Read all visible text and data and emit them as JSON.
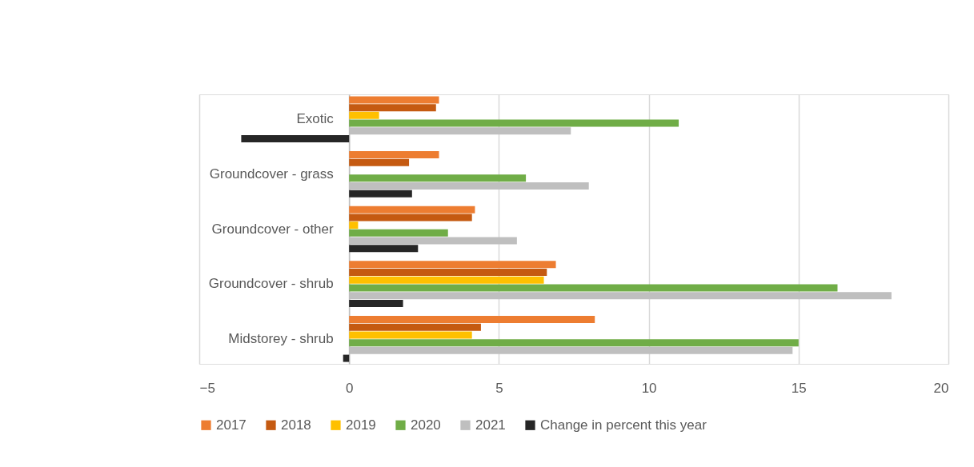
{
  "chart_data": {
    "type": "bar",
    "orientation": "horizontal",
    "categories": [
      "Exotic",
      "Groundcover - grass",
      "Groundcover - other",
      "Groundcover - shrub",
      "Midstorey - shrub"
    ],
    "series": [
      {
        "name": "2017",
        "color": "#ed7d31",
        "values": [
          3.0,
          3.0,
          4.2,
          6.9,
          8.2
        ]
      },
      {
        "name": "2018",
        "color": "#c55a11",
        "values": [
          2.9,
          2.0,
          4.1,
          6.6,
          4.4
        ]
      },
      {
        "name": "2019",
        "color": "#ffc000",
        "values": [
          1.0,
          null,
          0.3,
          6.5,
          4.1
        ]
      },
      {
        "name": "2020",
        "color": "#70ad47",
        "values": [
          11.0,
          5.9,
          3.3,
          16.3,
          15.0
        ]
      },
      {
        "name": "2021",
        "color": "#bfbfbf",
        "values": [
          7.4,
          8.0,
          5.6,
          18.1,
          14.8
        ]
      },
      {
        "name": "Change in percent this year",
        "color": "#262626",
        "values": [
          -3.6,
          2.1,
          2.3,
          1.8,
          -0.2
        ]
      }
    ],
    "xlim": [
      -5,
      20
    ],
    "xticks": [
      -5,
      0,
      5,
      10,
      15,
      20
    ],
    "grid": "x",
    "legend": "bottom"
  }
}
